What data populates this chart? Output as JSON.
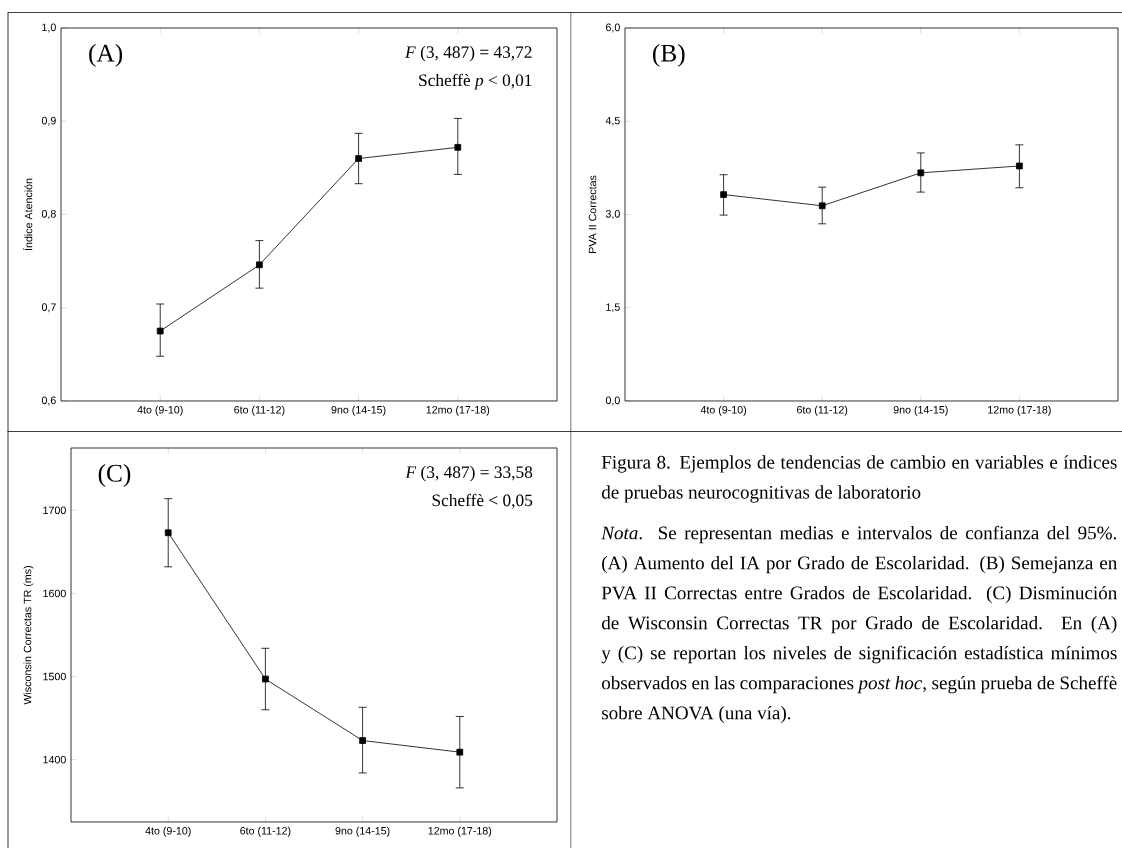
{
  "chart_data": [
    {
      "type": "line",
      "ylabel": "Índice Atención",
      "categories": [
        "4to (9-10)",
        "6to (11-12)",
        "9no (14-15)",
        "12mo (17-18)"
      ],
      "series": [
        {
          "color": "#000000",
          "values": [
            0.675,
            0.746,
            0.86,
            0.872
          ],
          "errors": [
            [
              0.648,
              0.704
            ],
            [
              0.721,
              0.772
            ],
            [
              0.833,
              0.887
            ],
            [
              0.843,
              0.903
            ]
          ]
        }
      ],
      "ylim": [
        0.6,
        1.0
      ],
      "yticks": [
        {
          "value": 0.6,
          "label": "0,6"
        },
        {
          "value": 0.7,
          "label": "0,7"
        },
        {
          "value": 0.8,
          "label": "0,8"
        },
        {
          "value": 0.9,
          "label": "0,9"
        },
        {
          "value": 1.0,
          "label": "1,0"
        }
      ],
      "annotations": [
        "(A)",
        "*F* (3, 487) = 43,72",
        "Scheffè *p* < 0,01"
      ],
      "marker": "square",
      "line_style": "solid"
    },
    {
      "type": "line",
      "ylabel": "PVA II Correctas",
      "categories": [
        "4to (9-10)",
        "6to (11-12)",
        "9no (14-15)",
        "12mo (17-18)"
      ],
      "series": [
        {
          "color": "#000000",
          "values": [
            3.32,
            3.14,
            3.67,
            3.78
          ],
          "errors": [
            [
              2.99,
              3.64
            ],
            [
              2.85,
              3.44
            ],
            [
              3.36,
              3.99
            ],
            [
              3.43,
              4.12
            ]
          ]
        }
      ],
      "ylim": [
        0,
        6
      ],
      "yticks": [
        {
          "value": 0,
          "label": "0,0"
        },
        {
          "value": 1.5,
          "label": "1,5"
        },
        {
          "value": 3,
          "label": "3,0"
        },
        {
          "value": 4.5,
          "label": "4,5"
        },
        {
          "value": 6,
          "label": "6,0"
        }
      ],
      "annotations": [
        "(B)"
      ],
      "marker": "square",
      "line_style": "solid"
    },
    {
      "type": "line",
      "ylabel": "Wisconsin Correctas TR (ms)",
      "categories": [
        "4to (9-10)",
        "6to (11-12)",
        "9no (14-15)",
        "12mo (17-18)"
      ],
      "series": [
        {
          "color": "#000000",
          "values": [
            1673,
            1497,
            1423,
            1409
          ],
          "errors": [
            [
              1632,
              1714
            ],
            [
              1460,
              1534
            ],
            [
              1384,
              1463
            ],
            [
              1366,
              1452
            ]
          ]
        }
      ],
      "ylim": [
        1325,
        1775
      ],
      "yticks": [
        1400,
        1500,
        1600,
        1700
      ],
      "annotations": [
        "(C)",
        "*F* (3, 487) = 33,58",
        "Scheffè < 0,05"
      ],
      "marker": "square",
      "line_style": "solid"
    },
    {
      "type": "other",
      "title": "Figura 8. Ejemplos de tendencias de cambio en variables e índices de pruebas neurocognitivas de laboratorio",
      "annotations": [
        "*Nota*. Se representan medias e intervalos de confianza del 95%.  (A) Aumento del IA por Grado de Escolaridad. (B) Semejanza en PVA II Correctas entre Grados de Escolaridad. (C) Disminución de Wisconsin Correctas TR por Grado de Escolaridad. En (A) y (C) se reportan los niveles de significación estadística mínimos observados en las comparaciones *post hoc*, según prueba de Scheffè sobre ANOVA (una vía)."
      ]
    }
  ]
}
